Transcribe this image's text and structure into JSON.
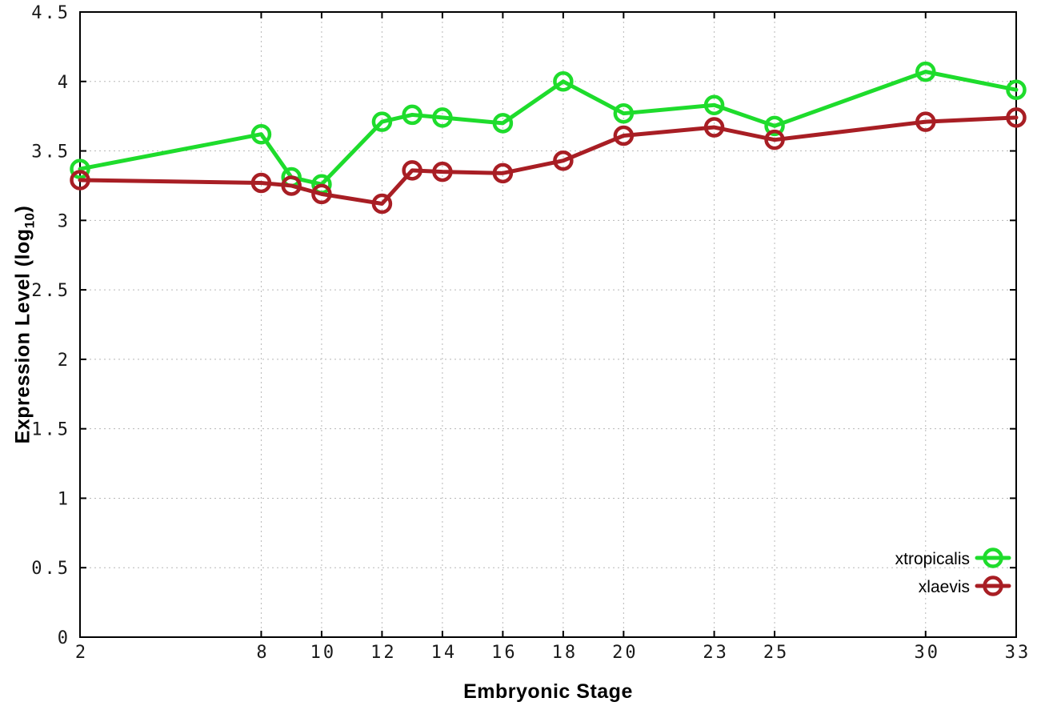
{
  "figure": {
    "background": "#ffffff",
    "border_color": "#000000",
    "grid_color": "#b8b8b8",
    "tick_label_color": "#1a1a1a"
  },
  "axes": {
    "xlabel": "Embryonic Stage",
    "ylabel_prefix": "Expression Level (log",
    "ylabel_sub": "10",
    "ylabel_suffix": ")"
  },
  "chart_data": {
    "type": "line",
    "title": "",
    "xlabel": "Embryonic Stage",
    "ylabel": "Expression Level (log10)",
    "xlim": [
      2,
      33
    ],
    "ylim": [
      0,
      4.5
    ],
    "grid": true,
    "legend_position": "bottom-right-inside",
    "x_ticks": [
      {
        "value": 2,
        "label": "2"
      },
      {
        "value": 8,
        "label": "8"
      },
      {
        "value": 10,
        "label": "10"
      },
      {
        "value": 12,
        "label": "12"
      },
      {
        "value": 14,
        "label": "14"
      },
      {
        "value": 16,
        "label": "16"
      },
      {
        "value": 18,
        "label": "18"
      },
      {
        "value": 20,
        "label": "20"
      },
      {
        "value": 23,
        "label": "23"
      },
      {
        "value": 25,
        "label": "25"
      },
      {
        "value": 30,
        "label": "30"
      },
      {
        "value": 33,
        "label": "33"
      }
    ],
    "y_ticks": [
      {
        "value": 0,
        "label": "0"
      },
      {
        "value": 0.5,
        "label": "0.5"
      },
      {
        "value": 1,
        "label": "1"
      },
      {
        "value": 1.5,
        "label": "1.5"
      },
      {
        "value": 2,
        "label": "2"
      },
      {
        "value": 2.5,
        "label": "2.5"
      },
      {
        "value": 3,
        "label": "3"
      },
      {
        "value": 3.5,
        "label": "3.5"
      },
      {
        "value": 4,
        "label": "4"
      },
      {
        "value": 4.5,
        "label": "4.5"
      }
    ],
    "series": [
      {
        "name": "xtropicalis",
        "color": "#1edc2c",
        "marker": "open-circle",
        "points": [
          [
            2,
            3.37
          ],
          [
            8,
            3.62
          ],
          [
            9,
            3.31
          ],
          [
            10,
            3.26
          ],
          [
            12,
            3.71
          ],
          [
            13,
            3.76
          ],
          [
            14,
            3.74
          ],
          [
            16,
            3.7
          ],
          [
            18,
            4.0
          ],
          [
            20,
            3.77
          ],
          [
            23,
            3.83
          ],
          [
            25,
            3.68
          ],
          [
            30,
            4.07
          ],
          [
            33,
            3.94
          ]
        ]
      },
      {
        "name": "xlaevis",
        "color": "#a81e24",
        "marker": "open-circle",
        "points": [
          [
            2,
            3.29
          ],
          [
            8,
            3.27
          ],
          [
            9,
            3.25
          ],
          [
            10,
            3.19
          ],
          [
            12,
            3.12
          ],
          [
            13,
            3.36
          ],
          [
            14,
            3.35
          ],
          [
            16,
            3.34
          ],
          [
            18,
            3.43
          ],
          [
            20,
            3.61
          ],
          [
            23,
            3.67
          ],
          [
            25,
            3.58
          ],
          [
            30,
            3.71
          ],
          [
            33,
            3.74
          ]
        ]
      }
    ]
  }
}
